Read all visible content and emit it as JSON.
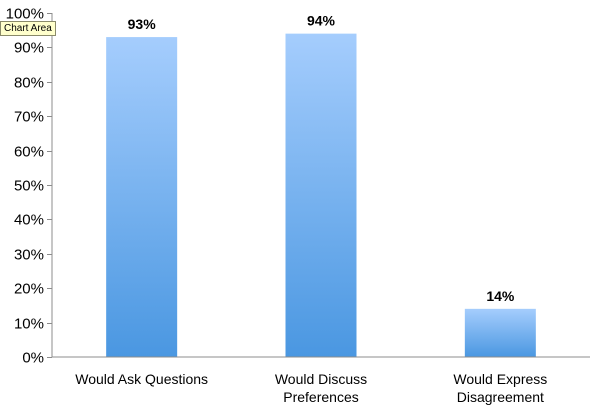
{
  "tooltip": {
    "text": "Chart Area"
  },
  "chart_data": {
    "type": "bar",
    "title": "",
    "xlabel": "",
    "ylabel": "",
    "categories": [
      [
        "Would Ask Questions"
      ],
      [
        "Would Discuss",
        "Preferences"
      ],
      [
        "Would Express",
        "Disagreement"
      ]
    ],
    "values": [
      93,
      94,
      14
    ],
    "data_labels": [
      "93%",
      "94%",
      "14%"
    ],
    "ylim": [
      0,
      100
    ],
    "yticks": [
      0,
      10,
      20,
      30,
      40,
      50,
      60,
      70,
      80,
      90,
      100
    ],
    "ytick_labels": [
      "0%",
      "10%",
      "20%",
      "30%",
      "40%",
      "50%",
      "60%",
      "70%",
      "80%",
      "90%",
      "100%"
    ],
    "grid": false,
    "legend": "none",
    "colors": {
      "bar_top": "#a5cdfd",
      "bar_bottom": "#4a97e1",
      "axis": "#8c8c8c"
    }
  }
}
